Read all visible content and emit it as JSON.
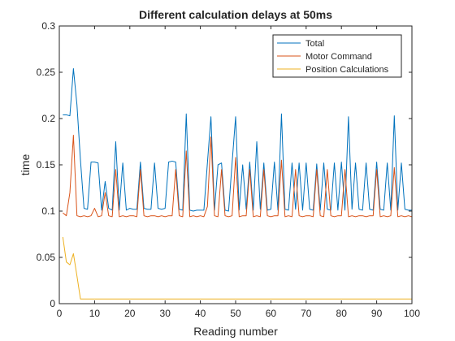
{
  "chart_data": {
    "type": "line",
    "title": "Different calculation delays at 50ms",
    "xlabel": "Reading number",
    "ylabel": "time",
    "xlim": [
      0,
      100
    ],
    "ylim": [
      0,
      0.3
    ],
    "xticks": [
      0,
      10,
      20,
      30,
      40,
      50,
      60,
      70,
      80,
      90,
      100
    ],
    "yticks": [
      0,
      0.05,
      0.1,
      0.15,
      0.2,
      0.25,
      0.3
    ],
    "xtick_labels": [
      "0",
      "10",
      "20",
      "30",
      "40",
      "50",
      "60",
      "70",
      "80",
      "90",
      "100"
    ],
    "ytick_labels": [
      "0",
      "0.05",
      "0.1",
      "0.15",
      "0.2",
      "0.25",
      "0.3"
    ],
    "grid": false,
    "legend_position": "top-right",
    "x": [
      1,
      2,
      3,
      4,
      5,
      6,
      7,
      8,
      9,
      10,
      11,
      12,
      13,
      14,
      15,
      16,
      17,
      18,
      19,
      20,
      21,
      22,
      23,
      24,
      25,
      26,
      27,
      28,
      29,
      30,
      31,
      32,
      33,
      34,
      35,
      36,
      37,
      38,
      39,
      40,
      41,
      42,
      43,
      44,
      45,
      46,
      47,
      48,
      49,
      50,
      51,
      52,
      53,
      54,
      55,
      56,
      57,
      58,
      59,
      60,
      61,
      62,
      63,
      64,
      65,
      66,
      67,
      68,
      69,
      70,
      71,
      72,
      73,
      74,
      75,
      76,
      77,
      78,
      79,
      80,
      81,
      82,
      83,
      84,
      85,
      86,
      87,
      88,
      89,
      90,
      91,
      92,
      93,
      94,
      95,
      96,
      97,
      98,
      99,
      100
    ],
    "series": [
      {
        "name": "Total",
        "color": "#0072BD",
        "values": [
          0.204,
          0.204,
          0.203,
          0.254,
          0.215,
          0.155,
          0.103,
          0.102,
          0.153,
          0.153,
          0.152,
          0.101,
          0.132,
          0.103,
          0.101,
          0.175,
          0.101,
          0.152,
          0.101,
          0.103,
          0.102,
          0.102,
          0.153,
          0.103,
          0.102,
          0.102,
          0.152,
          0.103,
          0.102,
          0.103,
          0.153,
          0.154,
          0.153,
          0.102,
          0.101,
          0.205,
          0.101,
          0.1,
          0.101,
          0.101,
          0.101,
          0.152,
          0.202,
          0.101,
          0.15,
          0.152,
          0.101,
          0.1,
          0.152,
          0.202,
          0.101,
          0.15,
          0.102,
          0.153,
          0.101,
          0.175,
          0.102,
          0.152,
          0.101,
          0.102,
          0.153,
          0.101,
          0.205,
          0.102,
          0.101,
          0.152,
          0.102,
          0.152,
          0.101,
          0.152,
          0.102,
          0.101,
          0.151,
          0.101,
          0.152,
          0.102,
          0.101,
          0.152,
          0.101,
          0.153,
          0.101,
          0.202,
          0.102,
          0.152,
          0.102,
          0.101,
          0.152,
          0.102,
          0.101,
          0.153,
          0.102,
          0.101,
          0.152,
          0.101,
          0.203,
          0.101,
          0.152,
          0.102,
          0.101,
          0.101
        ]
      },
      {
        "name": "Motor Command",
        "color": "#D95319",
        "values": [
          0.098,
          0.095,
          0.12,
          0.182,
          0.095,
          0.094,
          0.095,
          0.094,
          0.095,
          0.103,
          0.094,
          0.095,
          0.12,
          0.095,
          0.094,
          0.145,
          0.094,
          0.095,
          0.094,
          0.095,
          0.095,
          0.094,
          0.145,
          0.095,
          0.094,
          0.095,
          0.095,
          0.094,
          0.095,
          0.094,
          0.095,
          0.095,
          0.145,
          0.095,
          0.094,
          0.165,
          0.094,
          0.095,
          0.094,
          0.095,
          0.094,
          0.105,
          0.18,
          0.095,
          0.094,
          0.145,
          0.095,
          0.094,
          0.095,
          0.158,
          0.094,
          0.095,
          0.095,
          0.145,
          0.094,
          0.095,
          0.094,
          0.145,
          0.095,
          0.094,
          0.095,
          0.095,
          0.155,
          0.094,
          0.095,
          0.094,
          0.145,
          0.095,
          0.094,
          0.095,
          0.095,
          0.094,
          0.145,
          0.095,
          0.094,
          0.145,
          0.095,
          0.094,
          0.095,
          0.095,
          0.145,
          0.094,
          0.095,
          0.094,
          0.095,
          0.095,
          0.094,
          0.095,
          0.095,
          0.145,
          0.094,
          0.095,
          0.094,
          0.095,
          0.147,
          0.094,
          0.095,
          0.094,
          0.095,
          0.094
        ]
      },
      {
        "name": "Position Calculations",
        "color": "#EDB120",
        "values": [
          0.072,
          0.045,
          0.042,
          0.054,
          0.03,
          0.005,
          0.005,
          0.005,
          0.005,
          0.005,
          0.005,
          0.005,
          0.005,
          0.005,
          0.005,
          0.005,
          0.005,
          0.005,
          0.005,
          0.005,
          0.005,
          0.005,
          0.005,
          0.005,
          0.005,
          0.005,
          0.005,
          0.005,
          0.005,
          0.005,
          0.005,
          0.005,
          0.005,
          0.005,
          0.005,
          0.005,
          0.005,
          0.005,
          0.005,
          0.005,
          0.005,
          0.005,
          0.005,
          0.005,
          0.005,
          0.005,
          0.005,
          0.005,
          0.005,
          0.005,
          0.005,
          0.005,
          0.005,
          0.005,
          0.005,
          0.005,
          0.005,
          0.005,
          0.005,
          0.005,
          0.005,
          0.005,
          0.005,
          0.005,
          0.005,
          0.005,
          0.005,
          0.005,
          0.005,
          0.005,
          0.005,
          0.005,
          0.005,
          0.005,
          0.005,
          0.005,
          0.005,
          0.005,
          0.005,
          0.005,
          0.005,
          0.005,
          0.005,
          0.005,
          0.005,
          0.005,
          0.005,
          0.005,
          0.005,
          0.005,
          0.005,
          0.005,
          0.005,
          0.005,
          0.005,
          0.005,
          0.005,
          0.005,
          0.005,
          0.005
        ]
      }
    ]
  }
}
